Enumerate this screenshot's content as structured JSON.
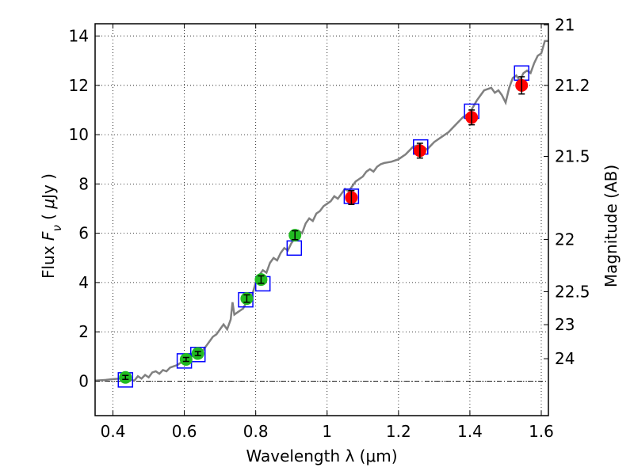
{
  "chart_data": {
    "type": "scatter",
    "xlabel": "Wavelength  λ (μm)",
    "ylabel": "Flux  F_ν  ( μJy )",
    "ylabel_parts": [
      "Flux  ",
      "F",
      "ν",
      "  ( ",
      "μ",
      "Jy )"
    ],
    "y2label": "Magnitude (AB)",
    "xlim": [
      0.35,
      1.62
    ],
    "ylim": [
      -1.4,
      14.5
    ],
    "x_ticks": [
      0.4,
      0.6,
      0.8,
      1.0,
      1.2,
      1.4,
      1.6
    ],
    "x_tick_labels": [
      "0.4",
      "0.6",
      "0.8",
      "1",
      "1.2",
      "1.4",
      "1.6"
    ],
    "y_ticks": [
      0,
      2,
      4,
      6,
      8,
      10,
      12,
      14
    ],
    "y_tick_labels": [
      "0",
      "2",
      "4",
      "6",
      "8",
      "10",
      "12",
      "14"
    ],
    "y2_ticks": [
      {
        "label": "21",
        "flux": 14.45
      },
      {
        "label": "21.2",
        "flux": 12.0
      },
      {
        "label": "21.5",
        "flux": 9.12
      },
      {
        "label": "22",
        "flux": 5.75
      },
      {
        "label": "22.5",
        "flux": 3.63
      },
      {
        "label": "23",
        "flux": 2.29
      },
      {
        "label": "24",
        "flux": 0.91
      }
    ],
    "grid": true,
    "zero_line": true,
    "colors": {
      "model": "#808080",
      "optical": "#22bb22",
      "nir": "#ff0000",
      "box": "#0000ff",
      "errorbar": "#000000"
    },
    "model_spectrum": {
      "x": [
        0.35,
        0.38,
        0.4,
        0.42,
        0.44,
        0.45,
        0.46,
        0.47,
        0.48,
        0.49,
        0.5,
        0.51,
        0.52,
        0.53,
        0.54,
        0.55,
        0.56,
        0.57,
        0.58,
        0.59,
        0.6,
        0.61,
        0.62,
        0.63,
        0.64,
        0.65,
        0.66,
        0.67,
        0.68,
        0.69,
        0.7,
        0.71,
        0.72,
        0.73,
        0.735,
        0.74,
        0.75,
        0.76,
        0.765,
        0.77,
        0.78,
        0.79,
        0.8,
        0.81,
        0.82,
        0.83,
        0.84,
        0.85,
        0.86,
        0.87,
        0.88,
        0.89,
        0.9,
        0.91,
        0.92,
        0.93,
        0.94,
        0.95,
        0.96,
        0.97,
        0.98,
        0.99,
        1.0,
        1.01,
        1.02,
        1.03,
        1.04,
        1.05,
        1.06,
        1.07,
        1.08,
        1.09,
        1.1,
        1.11,
        1.12,
        1.13,
        1.14,
        1.15,
        1.16,
        1.18,
        1.2,
        1.22,
        1.24,
        1.26,
        1.28,
        1.3,
        1.32,
        1.34,
        1.36,
        1.38,
        1.4,
        1.42,
        1.44,
        1.46,
        1.47,
        1.48,
        1.49,
        1.5,
        1.51,
        1.52,
        1.53,
        1.54,
        1.55,
        1.56,
        1.57,
        1.58,
        1.59,
        1.6,
        1.61,
        1.62
      ],
      "y": [
        0.02,
        0.05,
        0.08,
        0.1,
        0.12,
        0.05,
        0.02,
        0.2,
        0.1,
        0.25,
        0.15,
        0.35,
        0.4,
        0.3,
        0.45,
        0.4,
        0.55,
        0.6,
        0.65,
        0.75,
        0.8,
        0.9,
        1.0,
        1.1,
        0.95,
        1.2,
        1.4,
        1.6,
        1.8,
        1.9,
        2.1,
        2.3,
        2.1,
        2.5,
        3.2,
        2.7,
        2.8,
        2.9,
        2.95,
        3.1,
        3.3,
        3.5,
        4.0,
        4.3,
        4.5,
        4.4,
        4.8,
        5.0,
        4.9,
        5.2,
        5.4,
        5.3,
        5.6,
        5.8,
        6.1,
        6.0,
        6.4,
        6.6,
        6.5,
        6.8,
        6.9,
        7.1,
        7.2,
        7.3,
        7.5,
        7.4,
        7.6,
        7.8,
        7.7,
        7.9,
        8.1,
        8.2,
        8.3,
        8.5,
        8.6,
        8.5,
        8.7,
        8.8,
        8.85,
        8.9,
        9.0,
        9.2,
        9.5,
        9.6,
        9.4,
        9.7,
        9.9,
        10.1,
        10.4,
        10.7,
        10.9,
        11.4,
        11.8,
        11.9,
        11.7,
        11.8,
        11.6,
        11.3,
        11.9,
        12.3,
        12.4,
        12.2,
        12.5,
        12.6,
        12.5,
        12.9,
        13.2,
        13.3,
        13.8,
        13.8
      ]
    },
    "optical_points": [
      {
        "x": 0.435,
        "y": 0.15,
        "err": 0.08
      },
      {
        "x": 0.605,
        "y": 0.88,
        "err": 0.08
      },
      {
        "x": 0.638,
        "y": 1.12,
        "err": 0.08
      },
      {
        "x": 0.775,
        "y": 3.35,
        "err": 0.15
      },
      {
        "x": 0.815,
        "y": 4.12,
        "err": 0.15
      },
      {
        "x": 0.91,
        "y": 5.92,
        "err": 0.18
      }
    ],
    "nir_points": [
      {
        "x": 1.068,
        "y": 7.45,
        "err": 0.28
      },
      {
        "x": 1.26,
        "y": 9.35,
        "err": 0.3
      },
      {
        "x": 1.405,
        "y": 10.7,
        "err": 0.3
      },
      {
        "x": 1.545,
        "y": 12.0,
        "err": 0.35
      }
    ],
    "model_boxes": [
      {
        "x": 0.435,
        "y": 0.05
      },
      {
        "x": 0.6,
        "y": 0.82
      },
      {
        "x": 0.638,
        "y": 1.08
      },
      {
        "x": 0.772,
        "y": 3.3
      },
      {
        "x": 0.82,
        "y": 3.95
      },
      {
        "x": 0.908,
        "y": 5.4
      },
      {
        "x": 1.068,
        "y": 7.5
      },
      {
        "x": 1.262,
        "y": 9.5
      },
      {
        "x": 1.405,
        "y": 10.95
      },
      {
        "x": 1.545,
        "y": 12.5
      }
    ]
  }
}
